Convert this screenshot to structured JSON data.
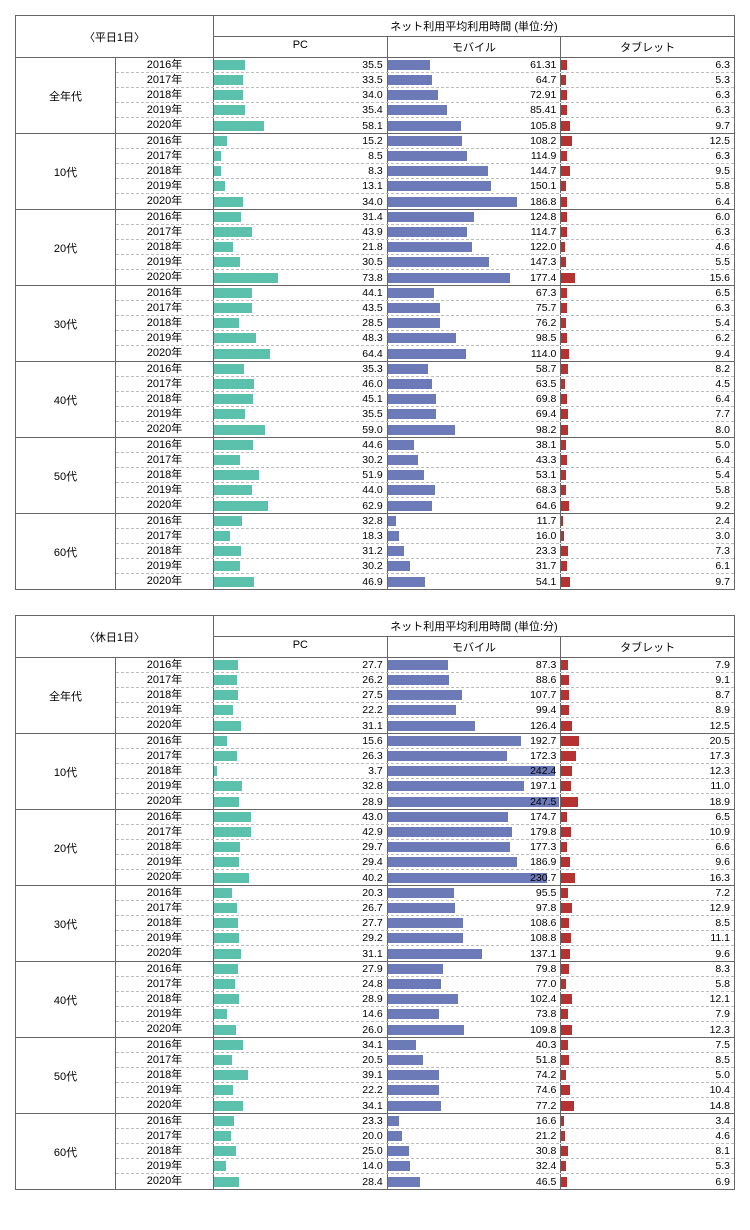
{
  "colors": {
    "pc": "#5bc1ac",
    "mobile": "#6c7ab8",
    "tablet": "#b53232"
  },
  "scales": {
    "pc_max": 200,
    "mobile_max": 250,
    "tablet_max": 200
  },
  "column_headers": {
    "main": "ネット利用平均利用時間 (単位:分)",
    "pc": "PC",
    "mobile": "モバイル",
    "tablet": "タブレット"
  },
  "year_labels": [
    "2016年",
    "2017年",
    "2018年",
    "2019年",
    "2020年"
  ],
  "tables": [
    {
      "title": "〈平日1日〉",
      "groups": [
        {
          "label": "全年代",
          "rows": [
            {
              "pc": 35.5,
              "mobile": 61.31,
              "tablet": 6.3
            },
            {
              "pc": 33.5,
              "mobile": 64.7,
              "tablet": 5.3
            },
            {
              "pc": 34.0,
              "mobile": 72.91,
              "tablet": 6.3
            },
            {
              "pc": 35.4,
              "mobile": 85.41,
              "tablet": 6.3
            },
            {
              "pc": 58.1,
              "mobile": 105.8,
              "tablet": 9.7
            }
          ]
        },
        {
          "label": "10代",
          "rows": [
            {
              "pc": 15.2,
              "mobile": 108.2,
              "tablet": 12.5
            },
            {
              "pc": 8.5,
              "mobile": 114.9,
              "tablet": 6.3
            },
            {
              "pc": 8.3,
              "mobile": 144.7,
              "tablet": 9.5
            },
            {
              "pc": 13.1,
              "mobile": 150.1,
              "tablet": 5.8
            },
            {
              "pc": 34.0,
              "mobile": 186.8,
              "tablet": 6.4
            }
          ]
        },
        {
          "label": "20代",
          "rows": [
            {
              "pc": 31.4,
              "mobile": 124.8,
              "tablet": 6.0
            },
            {
              "pc": 43.9,
              "mobile": 114.7,
              "tablet": 6.3
            },
            {
              "pc": 21.8,
              "mobile": 122.0,
              "tablet": 4.6
            },
            {
              "pc": 30.5,
              "mobile": 147.3,
              "tablet": 5.5
            },
            {
              "pc": 73.8,
              "mobile": 177.4,
              "tablet": 15.6
            }
          ]
        },
        {
          "label": "30代",
          "rows": [
            {
              "pc": 44.1,
              "mobile": 67.3,
              "tablet": 6.5
            },
            {
              "pc": 43.5,
              "mobile": 75.7,
              "tablet": 6.3
            },
            {
              "pc": 28.5,
              "mobile": 76.2,
              "tablet": 5.4
            },
            {
              "pc": 48.3,
              "mobile": 98.5,
              "tablet": 6.2
            },
            {
              "pc": 64.4,
              "mobile": 114.0,
              "tablet": 9.4
            }
          ]
        },
        {
          "label": "40代",
          "rows": [
            {
              "pc": 35.3,
              "mobile": 58.7,
              "tablet": 8.2
            },
            {
              "pc": 46.0,
              "mobile": 63.5,
              "tablet": 4.5
            },
            {
              "pc": 45.1,
              "mobile": 69.8,
              "tablet": 6.4
            },
            {
              "pc": 35.5,
              "mobile": 69.4,
              "tablet": 7.7
            },
            {
              "pc": 59.0,
              "mobile": 98.2,
              "tablet": 8.0
            }
          ]
        },
        {
          "label": "50代",
          "rows": [
            {
              "pc": 44.6,
              "mobile": 38.1,
              "tablet": 5.0
            },
            {
              "pc": 30.2,
              "mobile": 43.3,
              "tablet": 6.4
            },
            {
              "pc": 51.9,
              "mobile": 53.1,
              "tablet": 5.4
            },
            {
              "pc": 44.0,
              "mobile": 68.3,
              "tablet": 5.8
            },
            {
              "pc": 62.9,
              "mobile": 64.6,
              "tablet": 9.2
            }
          ]
        },
        {
          "label": "60代",
          "rows": [
            {
              "pc": 32.8,
              "mobile": 11.7,
              "tablet": 2.4
            },
            {
              "pc": 18.3,
              "mobile": 16.0,
              "tablet": 3.0
            },
            {
              "pc": 31.2,
              "mobile": 23.3,
              "tablet": 7.3
            },
            {
              "pc": 30.2,
              "mobile": 31.7,
              "tablet": 6.1
            },
            {
              "pc": 46.9,
              "mobile": 54.1,
              "tablet": 9.7
            }
          ]
        }
      ]
    },
    {
      "title": "〈休日1日〉",
      "groups": [
        {
          "label": "全年代",
          "rows": [
            {
              "pc": 27.7,
              "mobile": 87.3,
              "tablet": 7.9
            },
            {
              "pc": 26.2,
              "mobile": 88.6,
              "tablet": 9.1
            },
            {
              "pc": 27.5,
              "mobile": 107.7,
              "tablet": 8.7
            },
            {
              "pc": 22.2,
              "mobile": 99.4,
              "tablet": 8.9
            },
            {
              "pc": 31.1,
              "mobile": 126.4,
              "tablet": 12.5
            }
          ]
        },
        {
          "label": "10代",
          "rows": [
            {
              "pc": 15.6,
              "mobile": 192.7,
              "tablet": 20.5
            },
            {
              "pc": 26.3,
              "mobile": 172.3,
              "tablet": 17.3
            },
            {
              "pc": 3.7,
              "mobile": 242.4,
              "tablet": 12.3
            },
            {
              "pc": 32.8,
              "mobile": 197.1,
              "tablet": 11.0
            },
            {
              "pc": 28.9,
              "mobile": 247.5,
              "tablet": 18.9
            }
          ]
        },
        {
          "label": "20代",
          "rows": [
            {
              "pc": 43.0,
              "mobile": 174.7,
              "tablet": 6.5
            },
            {
              "pc": 42.9,
              "mobile": 179.8,
              "tablet": 10.9
            },
            {
              "pc": 29.7,
              "mobile": 177.3,
              "tablet": 6.6
            },
            {
              "pc": 29.4,
              "mobile": 186.9,
              "tablet": 9.6
            },
            {
              "pc": 40.2,
              "mobile": 230.7,
              "tablet": 16.3
            }
          ]
        },
        {
          "label": "30代",
          "rows": [
            {
              "pc": 20.3,
              "mobile": 95.5,
              "tablet": 7.2
            },
            {
              "pc": 26.7,
              "mobile": 97.8,
              "tablet": 12.9
            },
            {
              "pc": 27.7,
              "mobile": 108.6,
              "tablet": 8.5
            },
            {
              "pc": 29.2,
              "mobile": 108.8,
              "tablet": 11.1
            },
            {
              "pc": 31.1,
              "mobile": 137.1,
              "tablet": 9.6
            }
          ]
        },
        {
          "label": "40代",
          "rows": [
            {
              "pc": 27.9,
              "mobile": 79.8,
              "tablet": 8.3
            },
            {
              "pc": 24.8,
              "mobile": 77.0,
              "tablet": 5.8
            },
            {
              "pc": 28.9,
              "mobile": 102.4,
              "tablet": 12.1
            },
            {
              "pc": 14.6,
              "mobile": 73.8,
              "tablet": 7.9
            },
            {
              "pc": 26.0,
              "mobile": 109.8,
              "tablet": 12.3
            }
          ]
        },
        {
          "label": "50代",
          "rows": [
            {
              "pc": 34.1,
              "mobile": 40.3,
              "tablet": 7.5
            },
            {
              "pc": 20.5,
              "mobile": 51.8,
              "tablet": 8.5
            },
            {
              "pc": 39.1,
              "mobile": 74.2,
              "tablet": 5.0
            },
            {
              "pc": 22.2,
              "mobile": 74.6,
              "tablet": 10.4
            },
            {
              "pc": 34.1,
              "mobile": 77.2,
              "tablet": 14.8
            }
          ]
        },
        {
          "label": "60代",
          "rows": [
            {
              "pc": 23.3,
              "mobile": 16.6,
              "tablet": 3.4
            },
            {
              "pc": 20.0,
              "mobile": 21.2,
              "tablet": 4.6
            },
            {
              "pc": 25.0,
              "mobile": 30.8,
              "tablet": 8.1
            },
            {
              "pc": 14.0,
              "mobile": 32.4,
              "tablet": 5.3
            },
            {
              "pc": 28.4,
              "mobile": 46.5,
              "tablet": 6.9
            }
          ]
        }
      ]
    }
  ]
}
